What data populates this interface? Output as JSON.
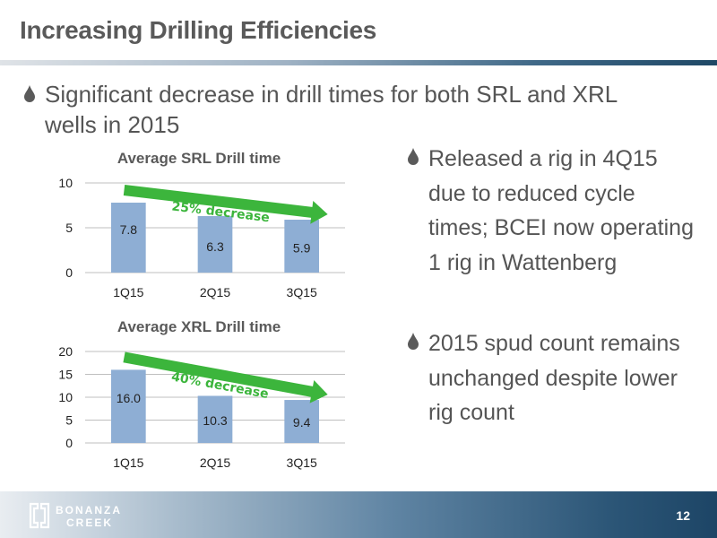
{
  "slide": {
    "title": "Increasing Drilling Efficiencies",
    "page_number": "12",
    "logo_text": [
      "BONANZA",
      "CREEK"
    ]
  },
  "bullets": {
    "main": "Significant decrease in drill times for both SRL and XRL wells in 2015",
    "right": [
      "Released a rig in 4Q15 due to reduced cycle times;  BCEI now operating 1 rig in Wattenberg",
      "2015 spud count remains unchanged despite lower rig count"
    ]
  },
  "colors": {
    "bar": "#8eaed4",
    "arrow": "#3cb53c",
    "title": "#5a5a5a"
  },
  "chart_data": [
    {
      "type": "bar",
      "title": "Average SRL Drill time",
      "categories": [
        "1Q15",
        "2Q15",
        "3Q15"
      ],
      "values": [
        7.8,
        6.3,
        5.9
      ],
      "data_labels": [
        "7.8",
        "6.3",
        "5.9"
      ],
      "ylim": [
        0,
        10
      ],
      "yticks": [
        0,
        5,
        10
      ],
      "grid": true,
      "annotation": "25% decrease"
    },
    {
      "type": "bar",
      "title": "Average XRL Drill time",
      "categories": [
        "1Q15",
        "2Q15",
        "3Q15"
      ],
      "values": [
        16.0,
        10.3,
        9.4
      ],
      "data_labels": [
        "16.0",
        "10.3",
        "9.4"
      ],
      "ylim": [
        0,
        20
      ],
      "yticks": [
        0,
        5,
        10,
        15,
        20
      ],
      "grid": true,
      "annotation": "40% decrease"
    }
  ]
}
